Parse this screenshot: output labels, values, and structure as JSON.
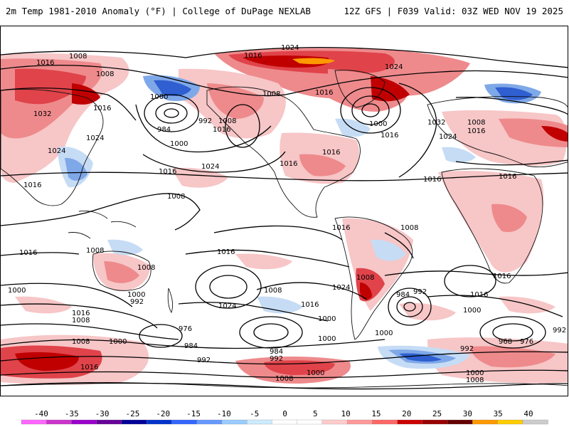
{
  "header": {
    "title_left": "2m Temp 1981-2010 Anomaly (°F) | College of DuPage NEXLAB",
    "title_right": "12Z GFS | F039 Valid: 03Z WED NOV 19 2025"
  },
  "colors": {
    "warm_light": "#f7c6c7",
    "warm_mid": "#ee8a8c",
    "warm_strong": "#e0434a",
    "warm_deep": "#c00000",
    "warm_extreme": "#ff9900",
    "cold_light": "#c6dcf5",
    "cold_mid": "#7fa8e8",
    "cold_strong": "#2f5fd0",
    "background": "#ffffff"
  },
  "scale": {
    "ticks": [
      "-40",
      "-35",
      "-30",
      "-25",
      "-20",
      "-15",
      "-10",
      "-5",
      "0",
      "5",
      "10",
      "15",
      "20",
      "25",
      "30",
      "35",
      "40"
    ],
    "swatches": [
      "#ff66ff",
      "#cc33cc",
      "#9900cc",
      "#660099",
      "#000099",
      "#0033cc",
      "#3366ff",
      "#6699ff",
      "#99ccff",
      "#ccecff",
      "#ffffff",
      "#ffffff",
      "#ffcccc",
      "#ff9999",
      "#ff6666",
      "#cc0000",
      "#990000",
      "#660000",
      "#ff9900",
      "#ffcc00",
      "#cccccc"
    ]
  },
  "isobars": [
    {
      "label": "1024",
      "desc": "north arctic"
    },
    {
      "label": "1016",
      "desc": "arctic"
    },
    {
      "label": "1016",
      "desc": "pacific west"
    },
    {
      "label": "1008",
      "desc": "pacific"
    },
    {
      "label": "1008",
      "desc": "asia east"
    },
    {
      "label": "1000",
      "desc": "pacific low"
    },
    {
      "label": "984",
      "desc": "aleutian low"
    },
    {
      "label": "992",
      "desc": "aleutian low"
    },
    {
      "label": "1008",
      "desc": "gulf of alaska"
    },
    {
      "label": "1016",
      "desc": "gulf of alaska"
    },
    {
      "label": "1000",
      "desc": "north pacific"
    },
    {
      "label": "1024",
      "desc": "east pacific high"
    },
    {
      "label": "1016",
      "desc": "asia"
    },
    {
      "label": "1032",
      "desc": "siberia"
    },
    {
      "label": "1024",
      "desc": "china"
    },
    {
      "label": "1024",
      "desc": "asia south"
    },
    {
      "label": "1016",
      "desc": "west"
    },
    {
      "label": "1016",
      "desc": "central pacific"
    },
    {
      "label": "1008",
      "desc": "equatorial"
    },
    {
      "label": "1016",
      "desc": "usa"
    },
    {
      "label": "1016",
      "desc": "eastern usa"
    },
    {
      "label": "1008",
      "desc": "canada"
    },
    {
      "label": "1016",
      "desc": "greenland"
    },
    {
      "label": "1000",
      "desc": "north atlantic"
    },
    {
      "label": "1016",
      "desc": "north atlantic"
    },
    {
      "label": "1024",
      "desc": "north atlantic high"
    },
    {
      "label": "1032",
      "desc": "atlantic high"
    },
    {
      "label": "1024",
      "desc": "north russia"
    },
    {
      "label": "1008",
      "desc": "europe"
    },
    {
      "label": "1016",
      "desc": "europe"
    },
    {
      "label": "1016",
      "desc": "africa"
    },
    {
      "label": "1016",
      "desc": "atlantic"
    },
    {
      "label": "1016",
      "desc": "south america"
    },
    {
      "label": "1008",
      "desc": "brazil"
    },
    {
      "label": "1016",
      "desc": "indonesia"
    },
    {
      "label": "1008",
      "desc": "indian ocean"
    },
    {
      "label": "1008",
      "desc": "australia"
    },
    {
      "label": "1016",
      "desc": "south pacific"
    },
    {
      "label": "1024",
      "desc": "south pacific high"
    },
    {
      "label": "1008",
      "desc": "south pacific"
    },
    {
      "label": "1016",
      "desc": "south pacific east"
    },
    {
      "label": "1024",
      "desc": "south atlantic"
    },
    {
      "label": "1008",
      "desc": "argentina"
    },
    {
      "label": "1000",
      "desc": "south"
    },
    {
      "label": "984",
      "desc": "south atlantic low"
    },
    {
      "label": "992",
      "desc": "south atlantic low"
    },
    {
      "label": "1016",
      "desc": "south africa"
    },
    {
      "label": "1016",
      "desc": "indian south"
    },
    {
      "label": "1000",
      "desc": "southern ocean"
    },
    {
      "label": "1000",
      "desc": "west"
    },
    {
      "label": "1016",
      "desc": "west south"
    },
    {
      "label": "1008",
      "desc": "west south"
    },
    {
      "label": "1000",
      "desc": "tasman"
    },
    {
      "label": "992",
      "desc": "tasman"
    },
    {
      "label": "976",
      "desc": "southern pacific low"
    },
    {
      "label": "1000",
      "desc": "southern pacific"
    },
    {
      "label": "1008",
      "desc": "southern west"
    },
    {
      "label": "984",
      "desc": "southern pacific"
    },
    {
      "label": "992",
      "desc": "southern pacific"
    },
    {
      "label": "984",
      "desc": "southern pacific low"
    },
    {
      "label": "992",
      "desc": "southern pacific low"
    },
    {
      "label": "1000",
      "desc": "drake"
    },
    {
      "label": "1000",
      "desc": "antarctic"
    },
    {
      "label": "1008",
      "desc": "antarctic"
    },
    {
      "label": "1016",
      "desc": "antarctic west"
    },
    {
      "label": "992",
      "desc": "southern indian"
    },
    {
      "label": "968",
      "desc": "southern indian low"
    },
    {
      "label": "976",
      "desc": "southern indian low"
    },
    {
      "label": "992",
      "desc": "southern indian east"
    },
    {
      "label": "1000",
      "desc": "southern"
    },
    {
      "label": "1000",
      "desc": "antarctic east"
    },
    {
      "label": "1008",
      "desc": "antarctic east"
    }
  ]
}
